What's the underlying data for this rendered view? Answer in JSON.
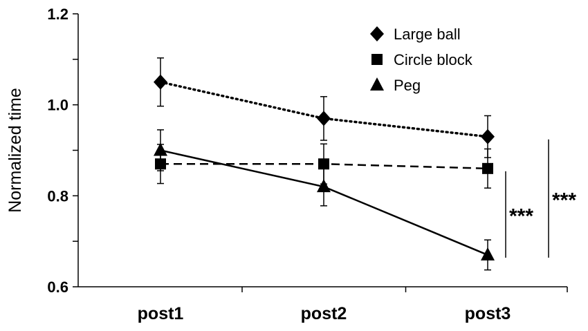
{
  "chart_data": {
    "type": "line",
    "categories": [
      "post1",
      "post2",
      "post3"
    ],
    "ylabel": "Normalized time",
    "xlabel": "",
    "ylim": [
      0.6,
      1.2
    ],
    "yticks": [
      "0.6",
      "0.8",
      "1.0",
      "1.2"
    ],
    "legend_position": "top-right",
    "grid": false,
    "series": [
      {
        "name": "Large ball",
        "marker": "diamond",
        "line_style": "dotted",
        "values": [
          1.05,
          0.97,
          0.93
        ],
        "errors": [
          0.053,
          0.048,
          0.046
        ]
      },
      {
        "name": "Circle block",
        "marker": "square",
        "line_style": "dashed",
        "values": [
          0.87,
          0.87,
          0.86
        ],
        "errors": [
          0.043,
          0.044,
          0.043
        ]
      },
      {
        "name": "Peg",
        "marker": "triangle",
        "line_style": "solid",
        "values": [
          0.9,
          0.82,
          0.67
        ],
        "errors": [
          0.045,
          0.042,
          0.033
        ]
      }
    ],
    "annotations": [
      {
        "text": "***",
        "y_from": 0.86,
        "y_to": 0.67
      },
      {
        "text": "***",
        "y_from": 0.93,
        "y_to": 0.67
      }
    ],
    "colors": {
      "ink": "#000000",
      "background": "#ffffff"
    }
  }
}
